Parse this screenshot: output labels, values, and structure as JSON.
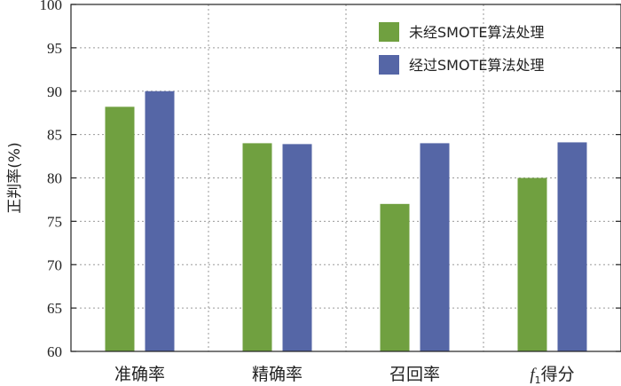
{
  "chart_data": {
    "type": "bar",
    "title": "",
    "xlabel": "",
    "ylabel": "正判率(%)",
    "ylim": [
      60,
      100
    ],
    "yticks": [
      60,
      65,
      70,
      75,
      80,
      85,
      90,
      95,
      100
    ],
    "categories": [
      "准确率",
      "精确率",
      "召回率",
      "f1得分"
    ],
    "series": [
      {
        "name": "未经SMOTE算法处理",
        "color": "#70a040",
        "values": [
          88.2,
          84.0,
          77.0,
          80.0
        ]
      },
      {
        "name": "经过SMOTE算法处理",
        "color": "#5566a6",
        "values": [
          90.0,
          83.9,
          84.0,
          84.1
        ]
      }
    ],
    "grid": true,
    "legend": "top-right"
  }
}
